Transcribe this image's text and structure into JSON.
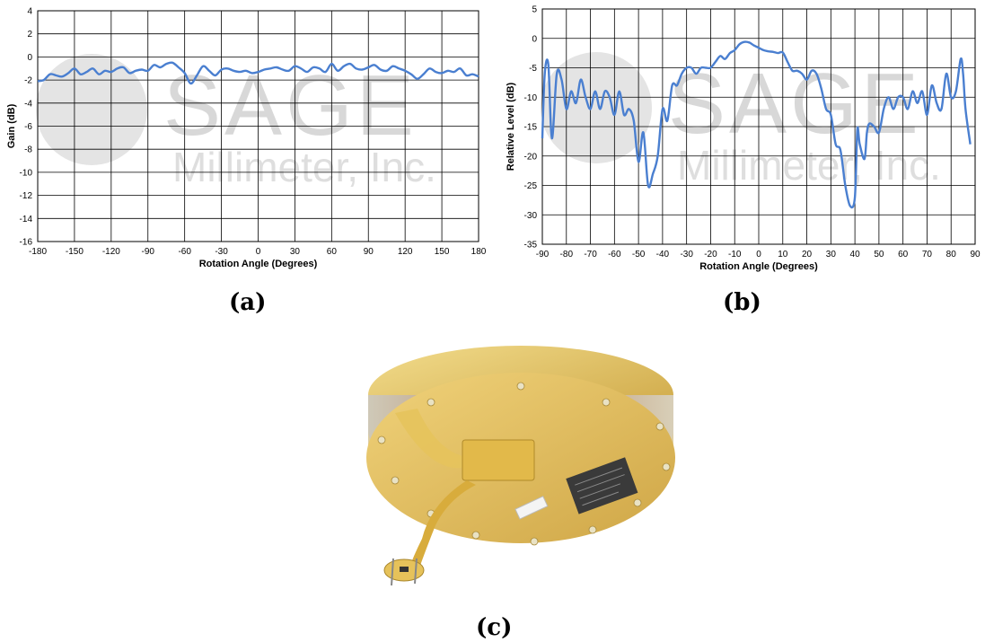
{
  "captions": {
    "a": "(a)",
    "b": "(b)",
    "c": "(c)"
  },
  "watermark": {
    "brand": "SAGE",
    "company": "Millimeter, Inc."
  },
  "colors": {
    "line": "#4a7fd0",
    "grid": "#000000",
    "device": "#d9b54a"
  },
  "chart_data": [
    {
      "type": "line",
      "xlabel": "Rotation Angle (Degrees)",
      "ylabel": "Gain (dB)",
      "xlim": [
        -180,
        180
      ],
      "ylim": [
        -16,
        4
      ],
      "xticks": [
        -180,
        -150,
        -120,
        -90,
        -60,
        -30,
        0,
        30,
        60,
        90,
        120,
        150,
        180
      ],
      "yticks": [
        4,
        2,
        0,
        -2,
        -4,
        -6,
        -8,
        -10,
        -12,
        -14,
        -16
      ],
      "grid": true,
      "series": [
        {
          "x": [
            -180,
            -175,
            -170,
            -165,
            -160,
            -155,
            -150,
            -145,
            -140,
            -135,
            -130,
            -125,
            -120,
            -115,
            -110,
            -105,
            -100,
            -95,
            -90,
            -85,
            -80,
            -75,
            -70,
            -65,
            -60,
            -55,
            -50,
            -45,
            -40,
            -35,
            -30,
            -25,
            -20,
            -15,
            -10,
            -5,
            0,
            5,
            10,
            15,
            20,
            25,
            30,
            35,
            40,
            45,
            50,
            55,
            60,
            65,
            70,
            75,
            80,
            85,
            90,
            95,
            100,
            105,
            110,
            115,
            120,
            125,
            130,
            135,
            140,
            145,
            150,
            155,
            160,
            165,
            170,
            175,
            180
          ],
          "y": [
            -2.1,
            -2.0,
            -1.5,
            -1.6,
            -1.7,
            -1.4,
            -1.0,
            -1.5,
            -1.3,
            -1.0,
            -1.5,
            -1.2,
            -1.3,
            -1.0,
            -0.9,
            -1.4,
            -1.2,
            -1.1,
            -1.2,
            -0.7,
            -0.9,
            -0.6,
            -0.5,
            -0.9,
            -1.4,
            -2.3,
            -1.6,
            -0.8,
            -1.2,
            -1.6,
            -1.1,
            -1.0,
            -1.2,
            -1.3,
            -1.2,
            -1.4,
            -1.3,
            -1.1,
            -1.0,
            -0.9,
            -1.1,
            -1.2,
            -0.8,
            -1.0,
            -1.3,
            -0.9,
            -1.0,
            -1.3,
            -0.6,
            -1.2,
            -0.8,
            -0.6,
            -1.0,
            -1.1,
            -0.9,
            -0.7,
            -1.1,
            -1.2,
            -0.8,
            -1.0,
            -1.2,
            -1.5,
            -1.9,
            -1.5,
            -1.0,
            -1.3,
            -1.4,
            -1.2,
            -1.3,
            -1.0,
            -1.6,
            -1.5,
            -1.7
          ]
        }
      ]
    },
    {
      "type": "line",
      "xlabel": "Rotation Angle (Degrees)",
      "ylabel": "Relative Level (dB)",
      "xlim": [
        -90,
        90
      ],
      "ylim": [
        -35,
        5
      ],
      "xticks": [
        -90,
        -80,
        -70,
        -60,
        -50,
        -40,
        -30,
        -20,
        -10,
        0,
        10,
        20,
        30,
        40,
        50,
        60,
        70,
        80,
        90
      ],
      "yticks": [
        5,
        0,
        -5,
        -10,
        -15,
        -20,
        -25,
        -30,
        -35
      ],
      "grid": true,
      "series": [
        {
          "x": [
            -90,
            -89,
            -87.5,
            -86,
            -84,
            -82,
            -80,
            -78,
            -76,
            -74,
            -72,
            -70,
            -68,
            -66,
            -64,
            -62,
            -60,
            -58,
            -56,
            -54,
            -52,
            -50,
            -48,
            -46,
            -44,
            -42,
            -40,
            -38,
            -36,
            -34,
            -32,
            -30,
            -28,
            -26,
            -24,
            -22,
            -20,
            -18,
            -16,
            -14,
            -12,
            -10,
            -8,
            -6,
            -4,
            -2,
            0,
            2,
            4,
            6,
            8,
            10,
            12,
            14,
            16,
            18,
            20,
            22,
            24,
            26,
            28,
            30,
            32,
            34,
            36,
            38,
            40,
            41,
            42,
            44,
            45,
            46,
            48,
            50,
            52,
            54,
            56,
            58,
            60,
            62,
            64,
            66,
            68,
            70,
            72,
            74,
            76,
            78,
            80,
            82,
            84,
            85,
            86,
            88
          ],
          "y": [
            -17,
            -6,
            -4.5,
            -17,
            -6,
            -7,
            -12,
            -9,
            -11,
            -7,
            -10,
            -12,
            -9,
            -12,
            -9,
            -10,
            -13,
            -9,
            -13,
            -12,
            -14,
            -21,
            -16,
            -25,
            -23,
            -20,
            -12,
            -14,
            -8,
            -8,
            -6,
            -5,
            -5,
            -6,
            -5,
            -5,
            -5,
            -4,
            -3,
            -3.5,
            -2.5,
            -2,
            -1,
            -0.6,
            -0.7,
            -1.2,
            -1.6,
            -2,
            -2.2,
            -2.3,
            -2.5,
            -2.4,
            -4,
            -5.5,
            -5.5,
            -6,
            -7,
            -5.5,
            -6,
            -8.5,
            -12,
            -13,
            -18,
            -19,
            -25,
            -28.5,
            -27,
            -15.5,
            -18,
            -20.5,
            -16,
            -14.5,
            -15,
            -16,
            -12,
            -10,
            -12,
            -10,
            -10,
            -12,
            -9,
            -11,
            -9,
            -13,
            -8,
            -11,
            -12,
            -6,
            -10,
            -9,
            -3.5,
            -6,
            -12,
            -18
          ]
        }
      ]
    }
  ]
}
